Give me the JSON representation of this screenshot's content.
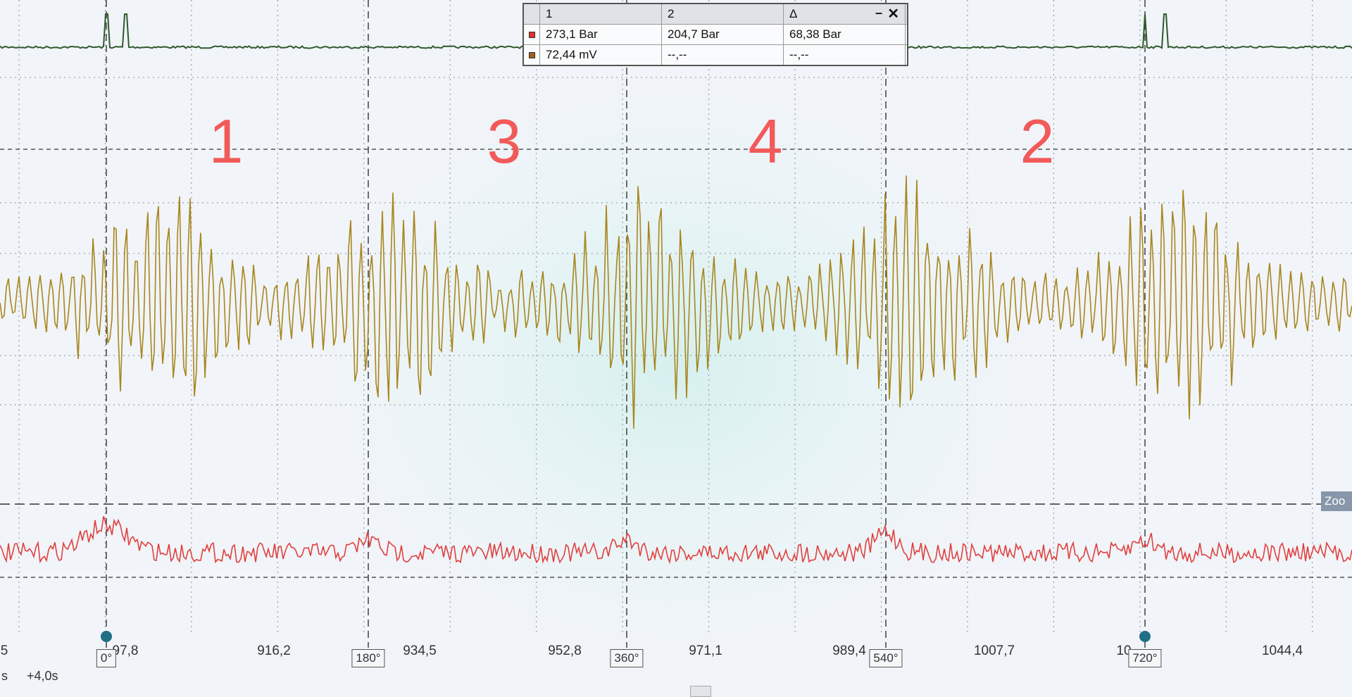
{
  "measurement_table": {
    "headers": [
      "1",
      "2",
      "Δ"
    ],
    "rows": [
      [
        "273,1 Bar",
        "204,7 Bar",
        "68,38 Bar"
      ],
      [
        "72,44 mV",
        "--,--",
        "--,--"
      ]
    ]
  },
  "cylinder_labels": [
    "1",
    "3",
    "4",
    "2"
  ],
  "time_axis_labels": [
    "5",
    "97,8",
    "916,2",
    "934,5",
    "952,8",
    "971,1",
    "989,4",
    "1007,7",
    "10",
    "1044,4"
  ],
  "crank_angle_markers": [
    "0°",
    "180°",
    "360°",
    "540°",
    "720°"
  ],
  "time_scale": {
    "unit": "s",
    "offset": "+4,0s"
  },
  "zoom_button": "Zoo"
}
